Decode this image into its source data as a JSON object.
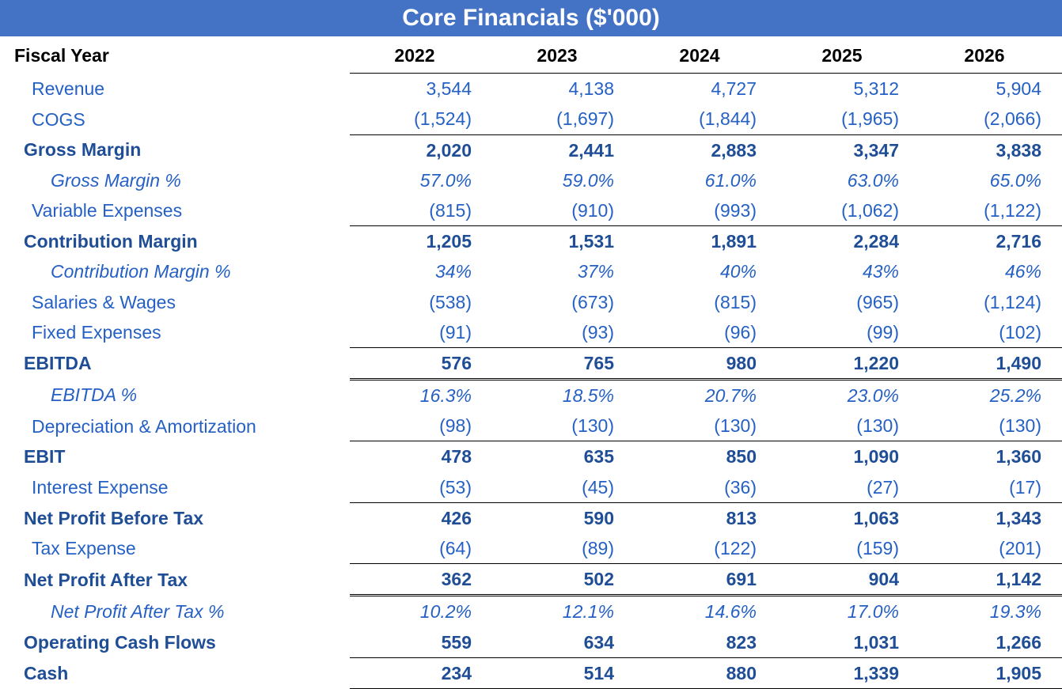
{
  "title": "Core Financials ($'000)",
  "header": {
    "label": "Fiscal Year",
    "years": [
      "2022",
      "2023",
      "2024",
      "2025",
      "2026"
    ]
  },
  "styles": {
    "title_bg": "#4472c4",
    "title_color": "#ffffff",
    "title_fontsize": 30,
    "header_color": "#000000",
    "normal_color": "#2560c4",
    "bold_color": "#1f4e96",
    "font_family": "Tahoma, Verdana, Arial, sans-serif",
    "body_fontsize": 23,
    "border_color": "#000000"
  },
  "rows": [
    {
      "label": "Revenue",
      "vals": [
        "3,544",
        "4,138",
        "4,727",
        "5,312",
        "5,904"
      ],
      "style": "normal"
    },
    {
      "label": "COGS",
      "vals": [
        "(1,524)",
        "(1,697)",
        "(1,844)",
        "(1,965)",
        "(2,066)"
      ],
      "style": "normal"
    },
    {
      "label": "Gross Margin",
      "vals": [
        "2,020",
        "2,441",
        "2,883",
        "3,347",
        "3,838"
      ],
      "style": "bold",
      "border": "top"
    },
    {
      "label": "Gross Margin %",
      "vals": [
        "57.0%",
        "59.0%",
        "61.0%",
        "63.0%",
        "65.0%"
      ],
      "style": "italic-indent"
    },
    {
      "label": "Variable Expenses",
      "vals": [
        "(815)",
        "(910)",
        "(993)",
        "(1,062)",
        "(1,122)"
      ],
      "style": "normal"
    },
    {
      "label": "Contribution Margin",
      "vals": [
        "1,205",
        "1,531",
        "1,891",
        "2,284",
        "2,716"
      ],
      "style": "bold",
      "border": "top"
    },
    {
      "label": "Contribution Margin %",
      "vals": [
        "34%",
        "37%",
        "40%",
        "43%",
        "46%"
      ],
      "style": "italic-indent"
    },
    {
      "label": "Salaries & Wages",
      "vals": [
        "(538)",
        "(673)",
        "(815)",
        "(965)",
        "(1,124)"
      ],
      "style": "normal"
    },
    {
      "label": "Fixed Expenses",
      "vals": [
        "(91)",
        "(93)",
        "(96)",
        "(99)",
        "(102)"
      ],
      "style": "normal"
    },
    {
      "label": "EBITDA",
      "vals": [
        "576",
        "765",
        "980",
        "1,220",
        "1,490"
      ],
      "style": "bold",
      "border": "top"
    },
    {
      "label": "EBITDA %",
      "vals": [
        "16.3%",
        "18.5%",
        "20.7%",
        "23.0%",
        "25.2%"
      ],
      "style": "italic-indent",
      "border": "double-above"
    },
    {
      "label": "Depreciation & Amortization",
      "vals": [
        "(98)",
        "(130)",
        "(130)",
        "(130)",
        "(130)"
      ],
      "style": "normal"
    },
    {
      "label": "EBIT",
      "vals": [
        "478",
        "635",
        "850",
        "1,090",
        "1,360"
      ],
      "style": "bold",
      "border": "top"
    },
    {
      "label": "Interest Expense",
      "vals": [
        "(53)",
        "(45)",
        "(36)",
        "(27)",
        "(17)"
      ],
      "style": "normal"
    },
    {
      "label": "Net Profit Before Tax",
      "vals": [
        "426",
        "590",
        "813",
        "1,063",
        "1,343"
      ],
      "style": "bold",
      "border": "top"
    },
    {
      "label": "Tax Expense",
      "vals": [
        "(64)",
        "(89)",
        "(122)",
        "(159)",
        "(201)"
      ],
      "style": "normal"
    },
    {
      "label": "Net Profit After Tax",
      "vals": [
        "362",
        "502",
        "691",
        "904",
        "1,142"
      ],
      "style": "bold",
      "border": "top"
    },
    {
      "label": "Net Profit After Tax %",
      "vals": [
        "10.2%",
        "12.1%",
        "14.6%",
        "17.0%",
        "19.3%"
      ],
      "style": "italic-indent",
      "border": "double-above"
    },
    {
      "label": "Operating Cash Flows",
      "vals": [
        "559",
        "634",
        "823",
        "1,031",
        "1,266"
      ],
      "style": "bold"
    },
    {
      "label": "Cash",
      "vals": [
        "234",
        "514",
        "880",
        "1,339",
        "1,905"
      ],
      "style": "bold",
      "border": "top",
      "last": true
    }
  ]
}
